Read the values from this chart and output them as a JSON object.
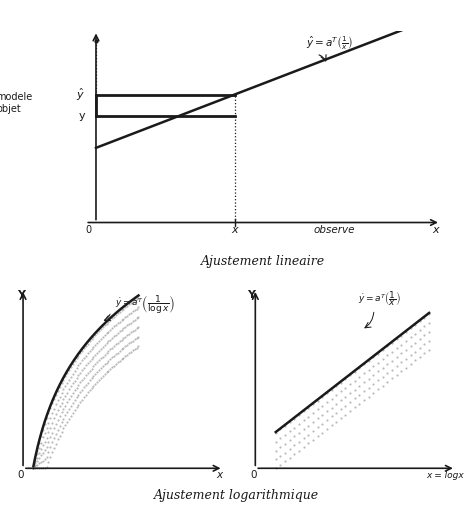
{
  "bg_color": "#ffffff",
  "line_color": "#1a1a1a",
  "title1": "Ajustement lineaire",
  "title2": "Ajustement logarithmique",
  "formula_linear": "$\\hat{y} = a^T\\left(\\frac{1}{x}\\right)$",
  "formula_log1": "$\\dot{y} = a^T\\left(\\frac{1}{\\log x}\\right)$",
  "formula_log2": "$\\dot{y} = a^T\\left(\\frac{1}{x}\\right)$",
  "label_modele": "modele\nobjet",
  "label_observe": "observe",
  "label_x_bottom": "x",
  "label_x_log": "x = logx",
  "label_0": "0",
  "label_x_tick": "x",
  "label_y_hat": "$\\hat{y}$",
  "label_y_lower": "y"
}
